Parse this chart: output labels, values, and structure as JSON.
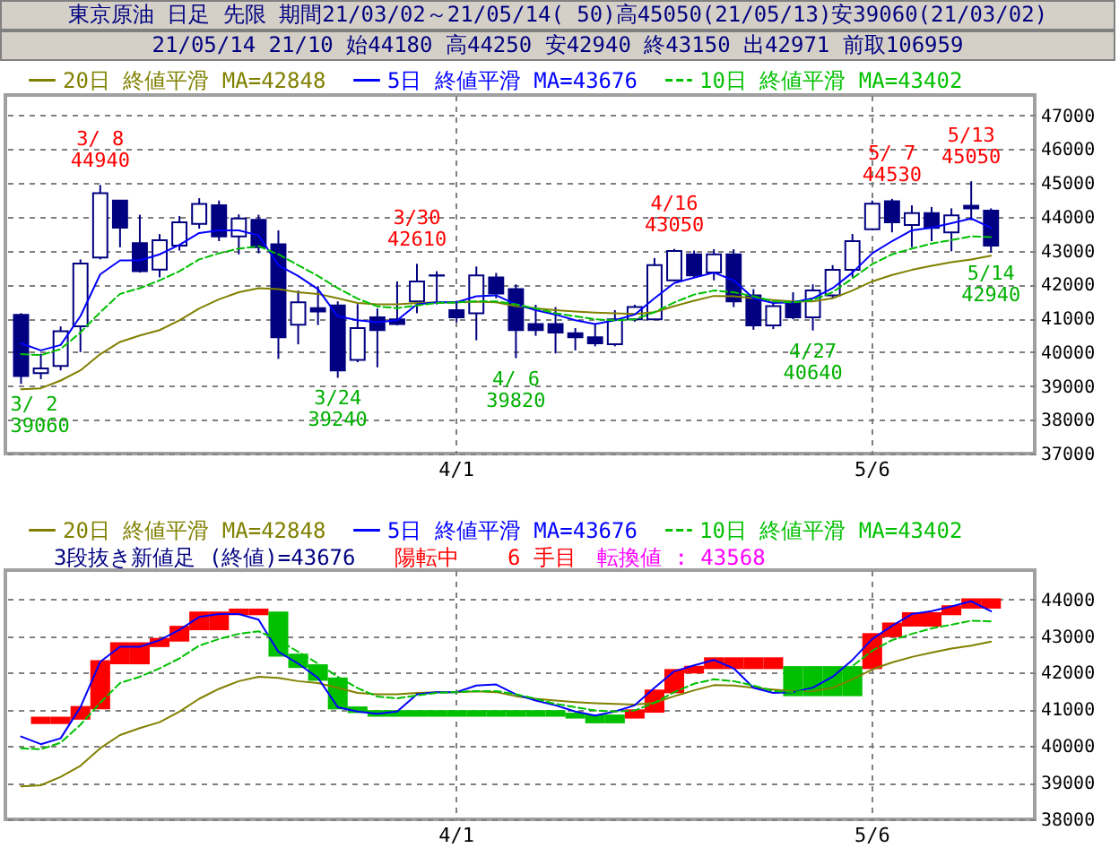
{
  "chart_data": [
    {
      "type": "candlestick",
      "title": "東京原油 日足 先限 期間21/03/02～21/05/14( 50)高45050(21/05/13)安39060(21/03/02)",
      "subtitle": "21/05/14 21/10 始44180 高44250 安42940 終43150 出42971 前取106959",
      "categories": [
        null,
        null,
        null,
        null,
        null,
        null,
        null,
        null,
        null,
        null,
        null,
        null,
        null,
        null,
        null,
        null,
        null,
        null,
        null,
        null,
        null,
        null,
        "4/1",
        null,
        null,
        null,
        null,
        null,
        null,
        null,
        null,
        null,
        null,
        null,
        null,
        null,
        null,
        null,
        null,
        null,
        null,
        null,
        null,
        "5/6",
        null,
        null,
        null,
        null,
        null,
        null
      ],
      "color": "#000080",
      "ohlc": [
        [
          41100,
          41150,
          39060,
          39290
        ],
        [
          39380,
          39950,
          39200,
          39520
        ],
        [
          39590,
          40760,
          39460,
          40620
        ],
        [
          40760,
          42740,
          40000,
          42620
        ],
        [
          42800,
          44940,
          42740,
          44700
        ],
        [
          44480,
          44500,
          43100,
          43680
        ],
        [
          43220,
          44060,
          42350,
          42390
        ],
        [
          42440,
          43490,
          42210,
          43310
        ],
        [
          43150,
          44020,
          43000,
          43840
        ],
        [
          43790,
          44550,
          43650,
          44380
        ],
        [
          44340,
          44480,
          43280,
          43420
        ],
        [
          43420,
          44070,
          42890,
          43950
        ],
        [
          43910,
          44060,
          42920,
          43100
        ],
        [
          43190,
          43600,
          39800,
          40440
        ],
        [
          40810,
          41820,
          40230,
          41470
        ],
        [
          41300,
          41950,
          40800,
          41200
        ],
        [
          41380,
          41500,
          39240,
          39460
        ],
        [
          39770,
          41420,
          39700,
          40710
        ],
        [
          41030,
          41290,
          39550,
          40650
        ],
        [
          40970,
          42090,
          40790,
          40830
        ],
        [
          41500,
          42610,
          41150,
          42090
        ],
        [
          42260,
          42390,
          41410,
          42270
        ],
        [
          41240,
          41500,
          40880,
          41030
        ],
        [
          41150,
          42530,
          40350,
          42270
        ],
        [
          42210,
          42340,
          41590,
          41730
        ],
        [
          41860,
          42000,
          39820,
          40650
        ],
        [
          40830,
          41400,
          40480,
          40650
        ],
        [
          40830,
          41330,
          39960,
          40580
        ],
        [
          40560,
          40710,
          40050,
          40440
        ],
        [
          40440,
          40830,
          40170,
          40260
        ],
        [
          40230,
          41240,
          40170,
          40970
        ],
        [
          40970,
          41400,
          40900,
          41330
        ],
        [
          40970,
          42780,
          40950,
          42570
        ],
        [
          42120,
          43050,
          42100,
          42990
        ],
        [
          42890,
          43000,
          42210,
          42270
        ],
        [
          42350,
          43040,
          42120,
          42890
        ],
        [
          42890,
          43040,
          41330,
          41500
        ],
        [
          41680,
          41860,
          40660,
          40790
        ],
        [
          40790,
          41500,
          40680,
          41360
        ],
        [
          41470,
          41770,
          40970,
          41030
        ],
        [
          41030,
          42000,
          40640,
          41820
        ],
        [
          41680,
          42570,
          41590,
          42430
        ],
        [
          42430,
          43490,
          42210,
          43280
        ],
        [
          43630,
          44480,
          43600,
          44390
        ],
        [
          44460,
          44530,
          43540,
          43840
        ],
        [
          43760,
          44340,
          43100,
          44110
        ],
        [
          44110,
          44290,
          43280,
          43670
        ],
        [
          43540,
          44250,
          42980,
          44040
        ],
        [
          44330,
          45050,
          43900,
          44250
        ],
        [
          44180,
          44250,
          42940,
          43150
        ]
      ],
      "series": [
        {
          "name": "20日 終値平滑 MA=42848",
          "type": "line",
          "color": "#808000",
          "values": [
            38900,
            38930,
            39160,
            39460,
            39940,
            40300,
            40490,
            40650,
            40940,
            41290,
            41560,
            41770,
            41890,
            41860,
            41770,
            41720,
            41590,
            41450,
            41410,
            41410,
            41450,
            41470,
            41470,
            41490,
            41470,
            41360,
            41290,
            41240,
            41200,
            41170,
            41150,
            41130,
            41180,
            41360,
            41520,
            41660,
            41650,
            41590,
            41540,
            41500,
            41500,
            41590,
            41820,
            42090,
            42280,
            42430,
            42550,
            42660,
            42740,
            42848
          ]
        },
        {
          "name": "5日 終値平滑 MA=43676",
          "type": "line",
          "color": "#0000ff",
          "values": [
            40260,
            40050,
            40210,
            41060,
            42300,
            42710,
            42710,
            42890,
            43170,
            43520,
            43600,
            43600,
            43450,
            42570,
            42250,
            41860,
            41060,
            40940,
            40880,
            40940,
            41410,
            41470,
            41470,
            41650,
            41680,
            41410,
            41240,
            41110,
            40940,
            40830,
            40940,
            41110,
            41590,
            42040,
            42200,
            42350,
            42120,
            41590,
            41450,
            41470,
            41590,
            41890,
            42350,
            42920,
            43280,
            43600,
            43680,
            43810,
            43950,
            43676
          ]
        },
        {
          "name": "10日 終値平滑 MA=43402",
          "type": "line",
          "color": "#00c000",
          "line_style": "dashed",
          "values": [
            39940,
            39910,
            40090,
            40580,
            41180,
            41720,
            41890,
            42120,
            42390,
            42740,
            42920,
            43060,
            43130,
            42890,
            42570,
            42250,
            41890,
            41580,
            41350,
            41300,
            41380,
            41450,
            41470,
            41500,
            41500,
            41410,
            41290,
            41150,
            41060,
            40970,
            40940,
            40970,
            41180,
            41470,
            41700,
            41820,
            41770,
            41650,
            41500,
            41470,
            41540,
            41770,
            42180,
            42600,
            42890,
            43060,
            43210,
            43310,
            43420,
            43402
          ]
        }
      ],
      "ylim": [
        37000,
        47600
      ],
      "yticks": [
        37000,
        38000,
        39000,
        40000,
        41000,
        42000,
        43000,
        44000,
        45000,
        46000,
        47000
      ],
      "grid": true,
      "legend": "top left",
      "annotations": [
        {
          "text": "3/ 8\n44940",
          "y": 44940
        },
        {
          "text": "3/30\n42610",
          "y": 42610
        },
        {
          "text": "4/16\n43050",
          "y": 43050
        },
        {
          "text": "5/ 7\n44530",
          "y": 44530
        },
        {
          "text": "5/13\n45050",
          "y": 45050
        },
        {
          "text": "3/ 2\n39060",
          "y": 39060
        },
        {
          "text": "3/24\n39240",
          "y": 39240
        },
        {
          "text": "4/ 6\n39820",
          "y": 39820
        },
        {
          "text": "4/27\n40640",
          "y": 40640
        },
        {
          "text": "5/14\n42940",
          "y": 42940
        }
      ]
    },
    {
      "type": "bar",
      "categories": [
        null,
        null,
        null,
        null,
        null,
        null,
        null,
        null,
        null,
        null,
        null,
        null,
        null,
        null,
        null,
        null,
        null,
        null,
        null,
        null,
        null,
        null,
        "4/1",
        null,
        null,
        null,
        null,
        null,
        null,
        null,
        null,
        null,
        null,
        null,
        null,
        null,
        null,
        null,
        null,
        null,
        null,
        null,
        null,
        "5/6",
        null,
        null,
        null,
        null,
        null,
        null
      ],
      "base": [
        null,
        40600,
        40600,
        40720,
        41000,
        42230,
        42230,
        42700,
        42850,
        43160,
        43160,
        43570,
        43570,
        43670,
        42520,
        42230,
        41870,
        41080,
        40980,
        40980,
        40980,
        40980,
        40980,
        40980,
        40980,
        40980,
        40980,
        40980,
        40910,
        40860,
        40860,
        40750,
        40910,
        41440,
        41980,
        42100,
        42100,
        42100,
        42100,
        42180,
        42180,
        42180,
        42180,
        42100,
        42970,
        43260,
        43260,
        43570,
        43750,
        43750
      ],
      "values": [
        null,
        200,
        200,
        370,
        1340,
        600,
        600,
        250,
        430,
        510,
        510,
        180,
        180,
        -1230,
        -390,
        -450,
        -870,
        -180,
        -180,
        -180,
        -180,
        -180,
        -180,
        -180,
        -180,
        -180,
        -180,
        -180,
        -160,
        -240,
        -240,
        250,
        630,
        660,
        210,
        320,
        320,
        320,
        320,
        -820,
        -820,
        -820,
        -820,
        980,
        400,
        390,
        390,
        270,
        280,
        280
      ],
      "colors": [
        null,
        "#ff0000",
        "#ff0000",
        "#ff0000",
        "#ff0000",
        "#ff0000",
        "#ff0000",
        "#ff0000",
        "#ff0000",
        "#ff0000",
        "#ff0000",
        "#ff0000",
        "#ff0000",
        "#00c000",
        "#00c000",
        "#00c000",
        "#00c000",
        "#00c000",
        "#00c000",
        "#00c000",
        "#00c000",
        "#00c000",
        "#00c000",
        "#00c000",
        "#00c000",
        "#00c000",
        "#00c000",
        "#00c000",
        "#00c000",
        "#00c000",
        "#00c000",
        "#ff0000",
        "#ff0000",
        "#ff0000",
        "#ff0000",
        "#ff0000",
        "#ff0000",
        "#ff0000",
        "#ff0000",
        "#00c000",
        "#00c000",
        "#00c000",
        "#00c000",
        "#ff0000",
        "#ff0000",
        "#ff0000",
        "#ff0000",
        "#ff0000",
        "#ff0000",
        "#ff0000"
      ],
      "series": [
        {
          "name": "20日 終値平滑 MA=42848",
          "type": "line",
          "color": "#808000",
          "values": [
            38900,
            38930,
            39160,
            39460,
            39940,
            40300,
            40490,
            40650,
            40940,
            41290,
            41560,
            41770,
            41890,
            41860,
            41770,
            41720,
            41590,
            41450,
            41410,
            41410,
            41450,
            41470,
            41470,
            41490,
            41470,
            41360,
            41290,
            41240,
            41200,
            41170,
            41150,
            41130,
            41180,
            41360,
            41520,
            41660,
            41650,
            41590,
            41540,
            41500,
            41500,
            41590,
            41820,
            42090,
            42280,
            42430,
            42550,
            42660,
            42740,
            42848
          ]
        },
        {
          "name": "5日 終値平滑 MA=43676",
          "type": "line",
          "color": "#0000ff",
          "values": [
            40260,
            40050,
            40210,
            41060,
            42300,
            42710,
            42710,
            42890,
            43170,
            43520,
            43600,
            43600,
            43450,
            42570,
            42250,
            41860,
            41060,
            40940,
            40880,
            40940,
            41410,
            41470,
            41470,
            41650,
            41680,
            41410,
            41240,
            41110,
            40940,
            40830,
            40940,
            41110,
            41590,
            42040,
            42200,
            42350,
            42120,
            41590,
            41450,
            41470,
            41590,
            41890,
            42350,
            42920,
            43280,
            43600,
            43680,
            43810,
            43950,
            43676
          ]
        },
        {
          "name": "10日 終値平滑 MA=43402",
          "type": "line",
          "color": "#00c000",
          "line_style": "dashed",
          "values": [
            39940,
            39910,
            40090,
            40580,
            41180,
            41720,
            41890,
            42120,
            42390,
            42740,
            42920,
            43060,
            43130,
            42890,
            42570,
            42250,
            41890,
            41580,
            41350,
            41300,
            41380,
            41450,
            41470,
            41500,
            41500,
            41410,
            41290,
            41150,
            41060,
            40970,
            40940,
            40970,
            41180,
            41470,
            41700,
            41820,
            41770,
            41650,
            41500,
            41470,
            41540,
            41770,
            42180,
            42600,
            42890,
            43060,
            43210,
            43310,
            43420,
            43402
          ]
        }
      ],
      "ylim": [
        38000,
        44800
      ],
      "yticks": [
        38000,
        39000,
        40000,
        41000,
        42000,
        43000,
        44000
      ],
      "grid": true,
      "legend": "top left",
      "annotations": [
        "3段抜き新値足 (終値)=43676",
        "陽転中",
        "6 手目",
        "転換値 : 43568"
      ]
    }
  ]
}
